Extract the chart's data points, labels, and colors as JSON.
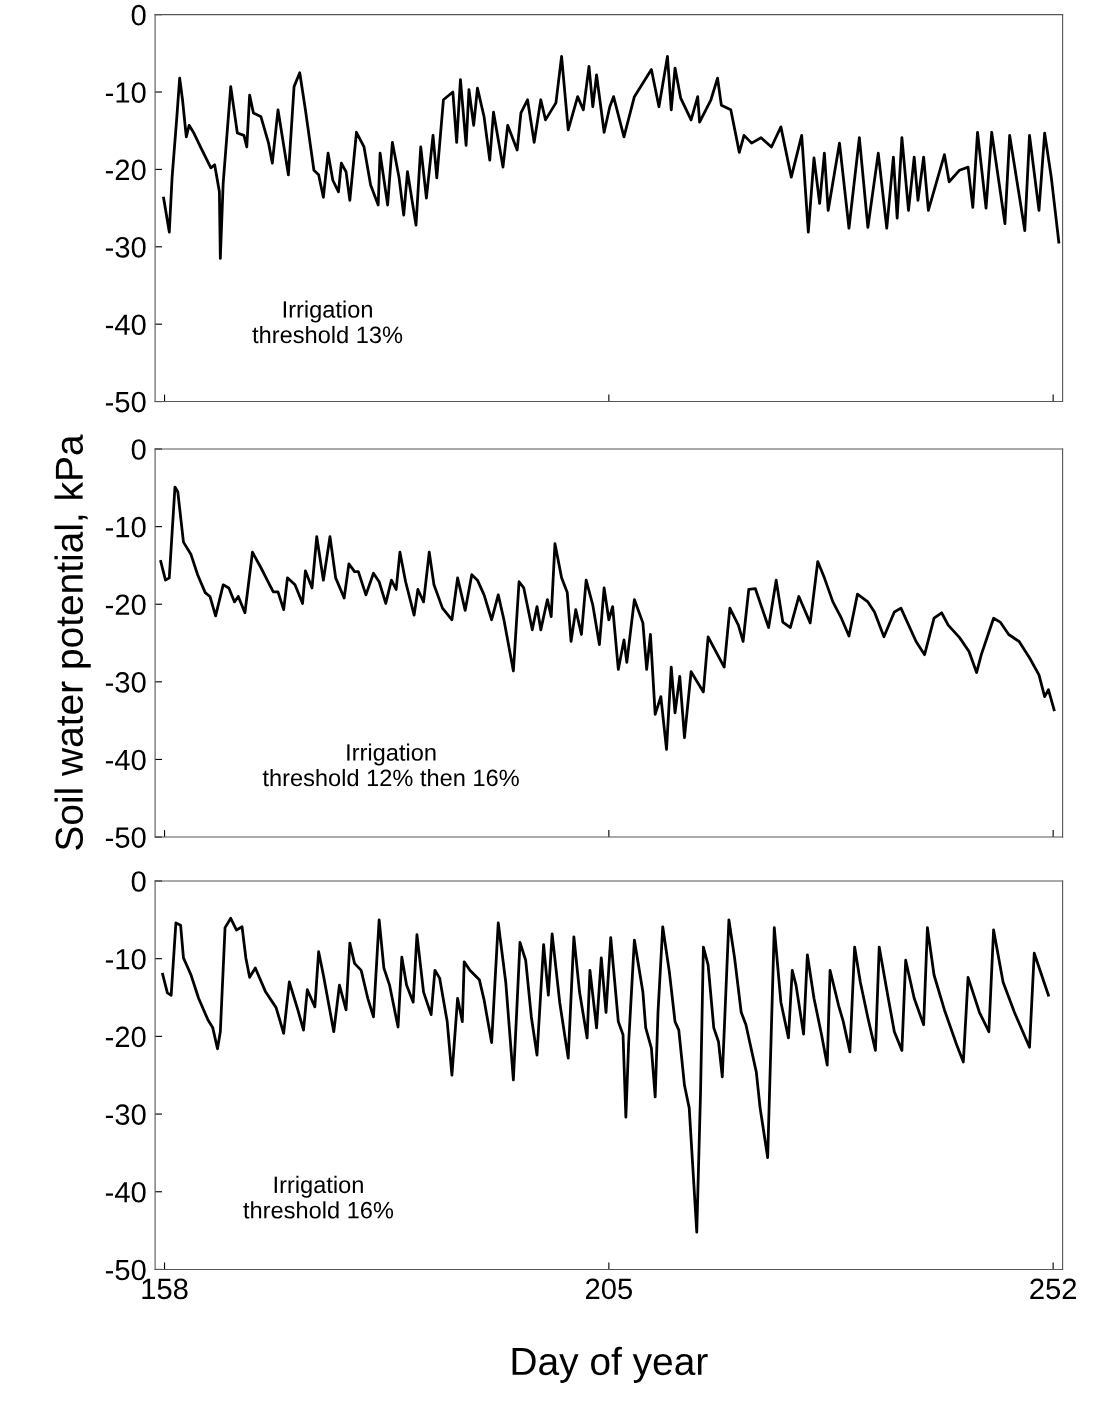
{
  "chart_data": [
    {
      "type": "line",
      "color": "#000000",
      "xlim": [
        157,
        253
      ],
      "xticks": [
        158,
        205,
        252
      ],
      "ylim": [
        -50,
        0
      ],
      "yticks": [
        0,
        -10,
        -20,
        -30,
        -40,
        -50
      ],
      "tick_labels": "y",
      "annotations": [
        "Irrigation\nthreshold 13%"
      ],
      "x": [
        157.9,
        158.5,
        158.8,
        159.3,
        159.6,
        159.9,
        160.3,
        160.6,
        161.1,
        161.8,
        162.9,
        163.3,
        163.8,
        163.9,
        164.2,
        165.0,
        165.7,
        166.4,
        166.7,
        167.0,
        167.4,
        168.2,
        169.0,
        169.4,
        170.0,
        171.1,
        171.7,
        172.3,
        172.9,
        173.8,
        174.3,
        174.8,
        175.3,
        175.8,
        176.4,
        176.7,
        177.2,
        177.6,
        178.3,
        179.1,
        179.8,
        180.6,
        180.8,
        181.6,
        182.1,
        182.8,
        183.3,
        183.7,
        184.6,
        185.1,
        185.7,
        186.4,
        186.8,
        187.5,
        188.5,
        188.9,
        189.3,
        189.9,
        190.2,
        190.7,
        191.1,
        191.8,
        192.4,
        192.8,
        193.8,
        194.3,
        195.3,
        195.7,
        196.4,
        197.1,
        197.8,
        198.3,
        199.4,
        200.0,
        200.7,
        201.7,
        202.3,
        202.9,
        203.3,
        203.7,
        204.5,
        205.1,
        205.5,
        206.6,
        207.7,
        209.5,
        210.3,
        211.2,
        211.6,
        212.0,
        212.6,
        213.7,
        214.4,
        214.6,
        215.8,
        216.5,
        216.9,
        217.9,
        218.8,
        219.3,
        220.1,
        221.1,
        222.2,
        223.2,
        224.3,
        225.4,
        226.1,
        226.7,
        227.3,
        227.8,
        228.2,
        229.4,
        230.4,
        231.5,
        232.4,
        233.5,
        234.4,
        235.1,
        235.5,
        236.0,
        236.7,
        237.3,
        237.7,
        238.3,
        238.8,
        240.5,
        241.0,
        242.1,
        243.0,
        243.5,
        244.0,
        244.9,
        245.5,
        246.9,
        247.4,
        249.0,
        249.5,
        250.5,
        251.1,
        251.8,
        252.6
      ],
      "values": [
        -23.7,
        -28.1,
        -21,
        -13.2,
        -8.2,
        -11,
        -15.8,
        -14.3,
        -15.3,
        -17.1,
        -19.8,
        -19.4,
        -22.9,
        -31.5,
        -21.8,
        -9.3,
        -15.3,
        -15.6,
        -17.1,
        -10.4,
        -12.7,
        -13.2,
        -16.6,
        -19.2,
        -12.3,
        -20.7,
        -9.3,
        -7.5,
        -12.3,
        -20.1,
        -20.7,
        -23.6,
        -17.9,
        -21.4,
        -22.9,
        -19.2,
        -20.3,
        -24,
        -15.2,
        -17.1,
        -22,
        -24.6,
        -17.9,
        -24.6,
        -16.5,
        -21,
        -25.9,
        -20.3,
        -27.2,
        -17.1,
        -23.7,
        -15.6,
        -21.1,
        -11,
        -10,
        -16.5,
        -8.4,
        -16.9,
        -9.7,
        -14.3,
        -9.5,
        -13.2,
        -18.8,
        -12.6,
        -19.7,
        -14.3,
        -17.5,
        -12.7,
        -11,
        -16.5,
        -11,
        -13.6,
        -11.4,
        -5.4,
        -14.9,
        -10.6,
        -12.3,
        -6.7,
        -11.9,
        -7.8,
        -15.2,
        -11.9,
        -10.6,
        -15.8,
        -10.6,
        -7.1,
        -11.9,
        -5.4,
        -12.3,
        -6.9,
        -10.8,
        -13.6,
        -10.6,
        -13.9,
        -11,
        -8.2,
        -11.7,
        -12.3,
        -17.8,
        -15.6,
        -16.6,
        -15.9,
        -17.1,
        -14.5,
        -21,
        -15.6,
        -28.1,
        -18.5,
        -24.4,
        -17.9,
        -25.3,
        -16.6,
        -27.6,
        -15.9,
        -27.5,
        -17.9,
        -27.6,
        -18.4,
        -26.3,
        -15.9,
        -25.3,
        -18.4,
        -24,
        -18.4,
        -25.3,
        -18.1,
        -21.6,
        -20.1,
        -19.7,
        -24.9,
        -15.2,
        -25,
        -15.2,
        -27,
        -15.6,
        -27.9,
        -15.6,
        -25.3,
        -15.3,
        -21,
        -29.4
      ]
    },
    {
      "type": "line",
      "color": "#000000",
      "xlim": [
        157,
        253
      ],
      "xticks": [
        158,
        205,
        252
      ],
      "ylim": [
        -50,
        0
      ],
      "yticks": [
        0,
        -10,
        -20,
        -30,
        -40,
        -50
      ],
      "tick_labels": "y",
      "ylabel": "Soil water potential, kPa",
      "annotations": [
        "Irrigation\nthreshold 12% then 16%"
      ],
      "x": [
        157.6,
        158.1,
        158.5,
        159.1,
        159.4,
        160.0,
        160.8,
        161.5,
        162.3,
        162.8,
        163.4,
        164.2,
        164.8,
        165.4,
        165.8,
        166.5,
        167.3,
        168.2,
        168.7,
        169.5,
        170.0,
        170.6,
        171.0,
        171.8,
        172.6,
        172.9,
        173.6,
        174.1,
        174.8,
        175.5,
        176.1,
        177.0,
        177.5,
        178.1,
        178.5,
        179.3,
        180.1,
        180.7,
        181.4,
        182.0,
        182.5,
        182.9,
        183.5,
        184.4,
        184.8,
        185.4,
        186.0,
        186.5,
        187.4,
        188.4,
        189.0,
        189.8,
        190.5,
        191.1,
        191.8,
        192.6,
        193.3,
        193.9,
        194.9,
        195.5,
        196.0,
        196.9,
        197.4,
        197.8,
        198.5,
        198.9,
        199.3,
        200.0,
        200.6,
        201.0,
        201.5,
        202.1,
        202.6,
        203.3,
        204.0,
        204.5,
        205.0,
        205.4,
        206.0,
        206.6,
        206.9,
        207.7,
        208.6,
        209.0,
        209.4,
        209.9,
        210.5,
        211.1,
        211.6,
        212.0,
        212.5,
        213.0,
        213.7,
        215.0,
        215.5,
        216.1,
        217.2,
        217.8,
        218.7,
        219.2,
        219.8,
        220.5,
        221.9,
        222.7,
        223.4,
        224.2,
        225.1,
        226.3,
        227.1,
        227.8,
        228.7,
        229.6,
        230.4,
        231.3,
        232.4,
        233.1,
        234.1,
        235.2,
        235.9,
        237.5,
        238.4,
        239.4,
        240.2,
        240.9,
        242.1,
        243.1,
        243.9,
        244.4,
        245.7,
        246.4,
        247.3,
        248.4,
        249.5,
        250.5,
        251.1,
        251.5,
        252.1
      ],
      "values": [
        -14.5,
        -16.9,
        -16.6,
        -4.9,
        -5.5,
        -12,
        -13.6,
        -16.2,
        -18.5,
        -19,
        -21.5,
        -17.5,
        -17.9,
        -19.7,
        -19,
        -21.1,
        -13.3,
        -15.3,
        -16.5,
        -18.4,
        -18.4,
        -20.7,
        -16.6,
        -17.5,
        -19.9,
        -15.7,
        -17.9,
        -11.3,
        -16.9,
        -11.3,
        -16.6,
        -19.2,
        -14.8,
        -15.8,
        -15.8,
        -18.8,
        -16,
        -17.1,
        -19.9,
        -16.9,
        -18.1,
        -13.3,
        -17.1,
        -21.4,
        -18.1,
        -19.7,
        -13.3,
        -17.5,
        -20.5,
        -22,
        -16.6,
        -20.8,
        -16.2,
        -16.9,
        -18.8,
        -22,
        -18.8,
        -22,
        -28.6,
        -17.1,
        -17.9,
        -23.3,
        -20.3,
        -23.3,
        -19.4,
        -21.6,
        -12.2,
        -16.6,
        -18.5,
        -24.8,
        -20.7,
        -23.9,
        -16.9,
        -20.1,
        -25.2,
        -17.9,
        -22,
        -20.3,
        -28.4,
        -24.6,
        -27.5,
        -19.4,
        -22.4,
        -28.4,
        -23.9,
        -34.2,
        -31.9,
        -38.7,
        -28.1,
        -34,
        -29.3,
        -37.2,
        -28.7,
        -31.3,
        -24.2,
        -25.6,
        -28.1,
        -20.5,
        -22.7,
        -24.8,
        -18.1,
        -18,
        -23,
        -16.9,
        -22.3,
        -23,
        -19,
        -22.4,
        -14.5,
        -16.6,
        -19.7,
        -21.8,
        -24.1,
        -18.7,
        -19.7,
        -21,
        -24.2,
        -21,
        -20.5,
        -24.8,
        -26.5,
        -21.8,
        -21.1,
        -22.7,
        -24.3,
        -26.1,
        -28.8,
        -26.5,
        -21.8,
        -22.3,
        -23.9,
        -24.8,
        -26.9,
        -29.1,
        -31.9,
        -31,
        -33.6
      ]
    },
    {
      "type": "line",
      "color": "#000000",
      "xlim": [
        157,
        253
      ],
      "xticks": [
        158,
        205,
        252
      ],
      "ylim": [
        -50,
        0
      ],
      "yticks": [
        0,
        -10,
        -20,
        -30,
        -40,
        -50
      ],
      "xlabel": "Day of year",
      "annotations": [
        "Irrigation\nthreshold 16%"
      ],
      "x": [
        157.8,
        158.3,
        158.7,
        159.2,
        159.7,
        160.0,
        160.8,
        161.6,
        162.6,
        163.1,
        163.6,
        163.9,
        164.4,
        165.0,
        165.6,
        166.2,
        166.6,
        167.0,
        167.6,
        168.7,
        169.8,
        170.6,
        171.2,
        172.1,
        172.7,
        173.1,
        173.9,
        174.3,
        174.8,
        175.9,
        176.5,
        177.2,
        177.6,
        178.1,
        178.8,
        179.5,
        180.1,
        180.7,
        181.2,
        181.8,
        182.7,
        183.1,
        183.6,
        184.3,
        184.7,
        185.4,
        186.2,
        186.6,
        187.1,
        187.9,
        188.4,
        189.0,
        189.5,
        189.7,
        190.3,
        191.3,
        191.8,
        192.6,
        193.3,
        194.1,
        194.9,
        195.3,
        195.6,
        196.2,
        196.8,
        197.4,
        198.1,
        198.6,
        199.0,
        199.8,
        200.7,
        201.3,
        201.9,
        202.7,
        203.0,
        203.7,
        204.2,
        204.7,
        205.2,
        206.0,
        206.5,
        206.8,
        207.1,
        207.7,
        208.6,
        208.9,
        209.5,
        209.9,
        210.2,
        210.7,
        211.4,
        212.0,
        212.4,
        213.0,
        213.5,
        214.3,
        214.7,
        215.0,
        215.5,
        216.1,
        216.6,
        217.0,
        217.7,
        218.3,
        219.0,
        219.5,
        220.6,
        221.0,
        221.8,
        222.5,
        223.2,
        224.0,
        224.4,
        224.8,
        225.6,
        226.0,
        226.7,
        227.5,
        228.1,
        228.4,
        229.3,
        229.8,
        230.5,
        231.0,
        231.6,
        232.4,
        233.2,
        233.6,
        234.5,
        235.2,
        236.0,
        236.4,
        237.3,
        238.3,
        238.7,
        239.4,
        240.5,
        241.8,
        242.5,
        243.0,
        244.2,
        245.2,
        245.7,
        246.7,
        247.9,
        249.5,
        250.0,
        251.5
      ],
      "values": [
        -12,
        -14.4,
        -14.7,
        -5.4,
        -5.7,
        -9.9,
        -12.1,
        -15.1,
        -17.9,
        -18.9,
        -21.6,
        -19.4,
        -6,
        -4.8,
        -6.3,
        -5.9,
        -9.9,
        -12.4,
        -11.2,
        -14.3,
        -16.3,
        -19.6,
        -13,
        -16.6,
        -19.2,
        -14,
        -16.2,
        -9.1,
        -12.1,
        -19.4,
        -13.4,
        -16.6,
        -8,
        -10.6,
        -11.5,
        -15.1,
        -17.5,
        -5,
        -11.2,
        -13.4,
        -18.8,
        -9.8,
        -13.4,
        -15.6,
        -6.9,
        -14.3,
        -17.2,
        -11.5,
        -12.5,
        -18.1,
        -25,
        -15.1,
        -18.1,
        -10.4,
        -11.5,
        -12.7,
        -15.3,
        -20.8,
        -5.4,
        -13.1,
        -25.6,
        -15.6,
        -7.9,
        -10.2,
        -17.5,
        -22.4,
        -8.2,
        -14.7,
        -6.8,
        -15.6,
        -22.8,
        -7.2,
        -14.3,
        -20.2,
        -11.5,
        -18.9,
        -9.9,
        -16.9,
        -7.3,
        -18.1,
        -19.8,
        -30.4,
        -20.7,
        -7.6,
        -14.3,
        -18.9,
        -21.5,
        -27.8,
        -16.9,
        -5.9,
        -11.7,
        -18.1,
        -19.2,
        -26.3,
        -29.2,
        -45.2,
        -27.2,
        -8.5,
        -10.8,
        -18.9,
        -20.7,
        -25.2,
        -5,
        -9.9,
        -16.9,
        -18.5,
        -24.6,
        -29.2,
        -35.6,
        -6,
        -15.6,
        -20.2,
        -11.5,
        -13.4,
        -19.7,
        -9.5,
        -15.1,
        -19.8,
        -23.7,
        -11.5,
        -16,
        -18.1,
        -22,
        -8.5,
        -13,
        -17.6,
        -21.8,
        -8.5,
        -14.7,
        -19.4,
        -21.8,
        -10.2,
        -15.1,
        -18.5,
        -6,
        -12.1,
        -16.6,
        -21.1,
        -23.3,
        -12.4,
        -16.9,
        -19.4,
        -6.3,
        -13,
        -16.9,
        -21.4,
        -9.3,
        -14.7
      ]
    }
  ]
}
